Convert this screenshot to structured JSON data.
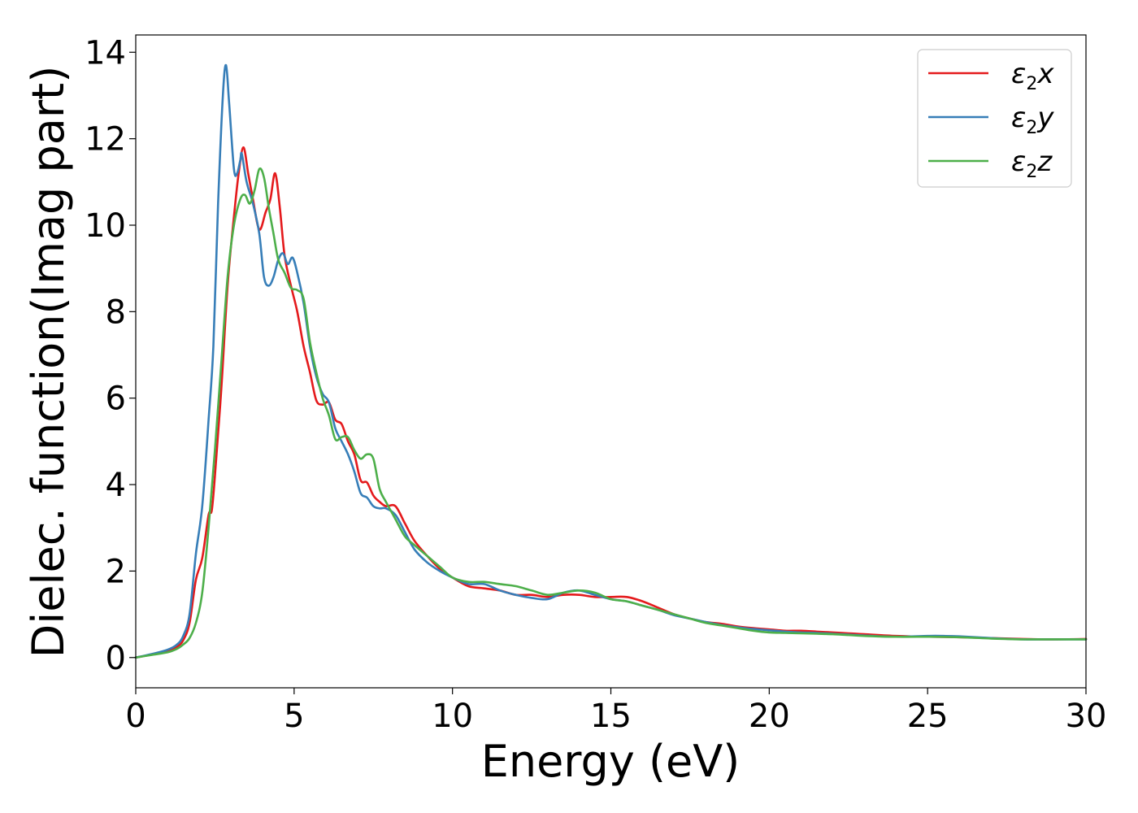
{
  "chart_data": {
    "type": "line",
    "xlabel": "Energy (eV)",
    "ylabel": "Dielec. function(Imag part)",
    "xlim": [
      0,
      30
    ],
    "ylim": [
      -0.7,
      14.4
    ],
    "xticks": [
      "0",
      "5",
      "10",
      "15",
      "20",
      "25",
      "30"
    ],
    "yticks": [
      "0",
      "2",
      "4",
      "6",
      "8",
      "10",
      "12",
      "14"
    ],
    "grid": false,
    "legend_position": "top-right",
    "series": [
      {
        "name": "ε2x",
        "legend_main": "ε",
        "legend_sub": "2",
        "legend_axis": "x",
        "color": "#e41a1c",
        "points": [
          [
            0,
            0
          ],
          [
            0.5,
            0.07
          ],
          [
            1.0,
            0.15
          ],
          [
            1.3,
            0.25
          ],
          [
            1.5,
            0.4
          ],
          [
            1.7,
            0.8
          ],
          [
            1.9,
            1.8
          ],
          [
            2.1,
            2.3
          ],
          [
            2.3,
            3.3
          ],
          [
            2.4,
            3.4
          ],
          [
            2.5,
            4.2
          ],
          [
            2.7,
            6.2
          ],
          [
            2.9,
            8.6
          ],
          [
            3.1,
            10.2
          ],
          [
            3.25,
            11.2
          ],
          [
            3.4,
            11.8
          ],
          [
            3.55,
            11.2
          ],
          [
            3.7,
            10.6
          ],
          [
            3.9,
            9.9
          ],
          [
            4.1,
            10.3
          ],
          [
            4.25,
            10.6
          ],
          [
            4.4,
            11.2
          ],
          [
            4.55,
            10.4
          ],
          [
            4.7,
            9.3
          ],
          [
            4.9,
            8.6
          ],
          [
            5.1,
            8.0
          ],
          [
            5.3,
            7.2
          ],
          [
            5.5,
            6.6
          ],
          [
            5.7,
            5.95
          ],
          [
            5.9,
            5.85
          ],
          [
            6.1,
            5.9
          ],
          [
            6.3,
            5.5
          ],
          [
            6.5,
            5.4
          ],
          [
            6.7,
            5.0
          ],
          [
            6.9,
            4.7
          ],
          [
            7.1,
            4.1
          ],
          [
            7.3,
            4.05
          ],
          [
            7.5,
            3.75
          ],
          [
            7.7,
            3.6
          ],
          [
            7.9,
            3.5
          ],
          [
            8.2,
            3.5
          ],
          [
            8.5,
            3.1
          ],
          [
            8.8,
            2.7
          ],
          [
            9.2,
            2.35
          ],
          [
            9.6,
            2.05
          ],
          [
            10.0,
            1.85
          ],
          [
            10.5,
            1.65
          ],
          [
            11.0,
            1.6
          ],
          [
            11.5,
            1.55
          ],
          [
            12.0,
            1.45
          ],
          [
            12.5,
            1.45
          ],
          [
            13.0,
            1.4
          ],
          [
            13.5,
            1.45
          ],
          [
            14.0,
            1.45
          ],
          [
            14.5,
            1.4
          ],
          [
            15.0,
            1.4
          ],
          [
            15.5,
            1.4
          ],
          [
            16.0,
            1.3
          ],
          [
            16.5,
            1.15
          ],
          [
            17.0,
            1.0
          ],
          [
            17.5,
            0.9
          ],
          [
            18.0,
            0.82
          ],
          [
            18.5,
            0.78
          ],
          [
            19.0,
            0.72
          ],
          [
            19.5,
            0.68
          ],
          [
            20.0,
            0.65
          ],
          [
            20.5,
            0.62
          ],
          [
            21.0,
            0.62
          ],
          [
            21.5,
            0.6
          ],
          [
            22.0,
            0.58
          ],
          [
            22.5,
            0.56
          ],
          [
            23.0,
            0.54
          ],
          [
            24.0,
            0.5
          ],
          [
            25.0,
            0.48
          ],
          [
            26.0,
            0.47
          ],
          [
            27.0,
            0.45
          ],
          [
            28.0,
            0.43
          ],
          [
            29.0,
            0.42
          ],
          [
            30.0,
            0.43
          ]
        ]
      },
      {
        "name": "ε2y",
        "legend_main": "ε",
        "legend_sub": "2",
        "legend_axis": "y",
        "color": "#377eb8",
        "points": [
          [
            0,
            0
          ],
          [
            0.5,
            0.08
          ],
          [
            1.0,
            0.18
          ],
          [
            1.3,
            0.3
          ],
          [
            1.5,
            0.5
          ],
          [
            1.7,
            1.0
          ],
          [
            1.9,
            2.4
          ],
          [
            2.1,
            3.5
          ],
          [
            2.3,
            5.5
          ],
          [
            2.45,
            7.2
          ],
          [
            2.6,
            10.5
          ],
          [
            2.75,
            13.0
          ],
          [
            2.85,
            13.7
          ],
          [
            2.95,
            12.8
          ],
          [
            3.1,
            11.3
          ],
          [
            3.2,
            11.2
          ],
          [
            3.3,
            11.5
          ],
          [
            3.35,
            11.65
          ],
          [
            3.5,
            11.0
          ],
          [
            3.7,
            10.5
          ],
          [
            3.9,
            9.8
          ],
          [
            4.05,
            8.8
          ],
          [
            4.2,
            8.6
          ],
          [
            4.35,
            8.8
          ],
          [
            4.5,
            9.2
          ],
          [
            4.65,
            9.35
          ],
          [
            4.8,
            9.1
          ],
          [
            4.95,
            9.25
          ],
          [
            5.1,
            8.9
          ],
          [
            5.3,
            8.2
          ],
          [
            5.5,
            7.2
          ],
          [
            5.7,
            6.5
          ],
          [
            5.9,
            6.1
          ],
          [
            6.1,
            5.9
          ],
          [
            6.3,
            5.3
          ],
          [
            6.5,
            5.0
          ],
          [
            6.7,
            4.7
          ],
          [
            6.9,
            4.3
          ],
          [
            7.1,
            3.8
          ],
          [
            7.3,
            3.7
          ],
          [
            7.5,
            3.5
          ],
          [
            7.7,
            3.45
          ],
          [
            7.9,
            3.45
          ],
          [
            8.2,
            3.3
          ],
          [
            8.5,
            2.9
          ],
          [
            8.8,
            2.5
          ],
          [
            9.2,
            2.2
          ],
          [
            9.6,
            2.0
          ],
          [
            10.0,
            1.85
          ],
          [
            10.5,
            1.7
          ],
          [
            11.0,
            1.7
          ],
          [
            11.5,
            1.55
          ],
          [
            12.0,
            1.45
          ],
          [
            12.5,
            1.38
          ],
          [
            13.0,
            1.35
          ],
          [
            13.5,
            1.5
          ],
          [
            14.0,
            1.55
          ],
          [
            14.5,
            1.45
          ],
          [
            15.0,
            1.35
          ],
          [
            15.5,
            1.3
          ],
          [
            16.0,
            1.2
          ],
          [
            16.5,
            1.1
          ],
          [
            17.0,
            0.98
          ],
          [
            17.5,
            0.9
          ],
          [
            18.0,
            0.82
          ],
          [
            18.5,
            0.75
          ],
          [
            19.0,
            0.7
          ],
          [
            19.5,
            0.66
          ],
          [
            20.0,
            0.63
          ],
          [
            20.5,
            0.6
          ],
          [
            21.0,
            0.58
          ],
          [
            21.5,
            0.57
          ],
          [
            22.0,
            0.55
          ],
          [
            22.5,
            0.53
          ],
          [
            23.0,
            0.51
          ],
          [
            24.0,
            0.48
          ],
          [
            25.0,
            0.5
          ],
          [
            25.5,
            0.5
          ],
          [
            26.0,
            0.49
          ],
          [
            27.0,
            0.45
          ],
          [
            28.0,
            0.42
          ],
          [
            29.0,
            0.42
          ],
          [
            30.0,
            0.42
          ]
        ]
      },
      {
        "name": "ε2z",
        "legend_main": "ε",
        "legend_sub": "2",
        "legend_axis": "z",
        "color": "#4daf4a",
        "points": [
          [
            0,
            0
          ],
          [
            0.5,
            0.06
          ],
          [
            1.0,
            0.12
          ],
          [
            1.3,
            0.2
          ],
          [
            1.5,
            0.3
          ],
          [
            1.7,
            0.45
          ],
          [
            1.9,
            0.8
          ],
          [
            2.1,
            1.5
          ],
          [
            2.3,
            3.0
          ],
          [
            2.5,
            4.8
          ],
          [
            2.7,
            6.8
          ],
          [
            2.9,
            8.8
          ],
          [
            3.1,
            10.0
          ],
          [
            3.3,
            10.6
          ],
          [
            3.45,
            10.7
          ],
          [
            3.6,
            10.5
          ],
          [
            3.75,
            10.8
          ],
          [
            3.9,
            11.3
          ],
          [
            4.05,
            11.1
          ],
          [
            4.2,
            10.4
          ],
          [
            4.35,
            9.8
          ],
          [
            4.5,
            9.2
          ],
          [
            4.7,
            8.9
          ],
          [
            4.9,
            8.55
          ],
          [
            5.1,
            8.5
          ],
          [
            5.3,
            8.3
          ],
          [
            5.5,
            7.3
          ],
          [
            5.7,
            6.6
          ],
          [
            5.9,
            6.0
          ],
          [
            6.1,
            5.6
          ],
          [
            6.3,
            5.05
          ],
          [
            6.5,
            5.1
          ],
          [
            6.7,
            5.1
          ],
          [
            6.9,
            4.8
          ],
          [
            7.1,
            4.6
          ],
          [
            7.3,
            4.7
          ],
          [
            7.5,
            4.6
          ],
          [
            7.7,
            3.9
          ],
          [
            7.9,
            3.6
          ],
          [
            8.2,
            3.2
          ],
          [
            8.5,
            2.8
          ],
          [
            8.8,
            2.6
          ],
          [
            9.2,
            2.35
          ],
          [
            9.6,
            2.1
          ],
          [
            10.0,
            1.85
          ],
          [
            10.5,
            1.75
          ],
          [
            11.0,
            1.75
          ],
          [
            11.5,
            1.7
          ],
          [
            12.0,
            1.65
          ],
          [
            12.5,
            1.55
          ],
          [
            13.0,
            1.45
          ],
          [
            13.5,
            1.5
          ],
          [
            14.0,
            1.55
          ],
          [
            14.5,
            1.5
          ],
          [
            15.0,
            1.35
          ],
          [
            15.5,
            1.3
          ],
          [
            16.0,
            1.2
          ],
          [
            16.5,
            1.1
          ],
          [
            17.0,
            1.0
          ],
          [
            17.5,
            0.9
          ],
          [
            18.0,
            0.8
          ],
          [
            18.5,
            0.74
          ],
          [
            19.0,
            0.68
          ],
          [
            19.5,
            0.62
          ],
          [
            20.0,
            0.58
          ],
          [
            20.5,
            0.57
          ],
          [
            21.0,
            0.56
          ],
          [
            21.5,
            0.55
          ],
          [
            22.0,
            0.54
          ],
          [
            22.5,
            0.52
          ],
          [
            23.0,
            0.5
          ],
          [
            24.0,
            0.48
          ],
          [
            25.0,
            0.48
          ],
          [
            26.0,
            0.47
          ],
          [
            27.0,
            0.44
          ],
          [
            28.0,
            0.42
          ],
          [
            29.0,
            0.42
          ],
          [
            30.0,
            0.42
          ]
        ]
      }
    ]
  }
}
